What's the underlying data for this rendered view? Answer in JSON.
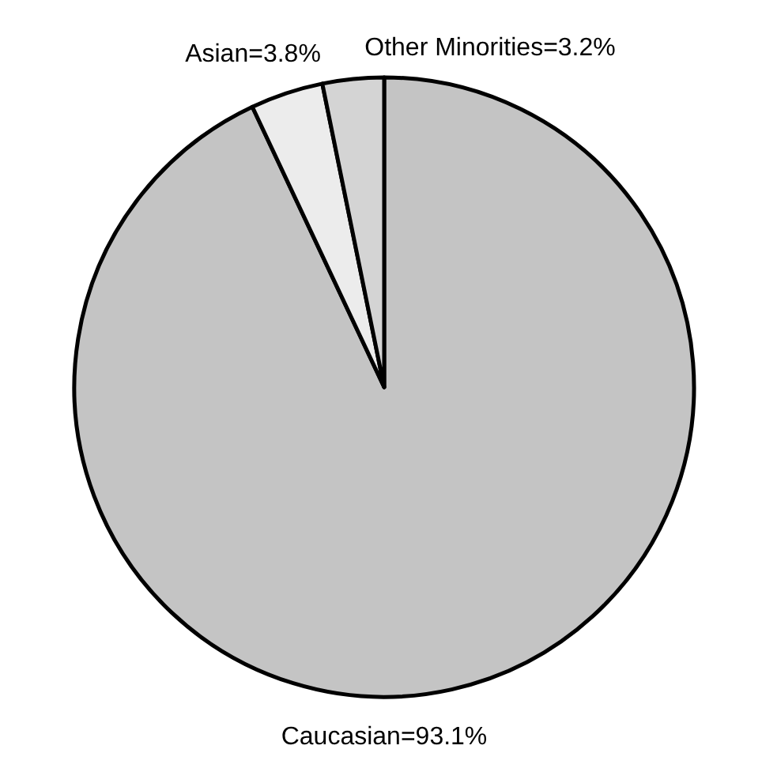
{
  "chart_data": {
    "type": "pie",
    "categories": [
      "Caucasian=93.1%",
      "Asian=3.8%",
      "Other Minorities=3.2%"
    ],
    "values": [
      93.1,
      3.8,
      3.2
    ],
    "colors": [
      "#c4c4c4",
      "#ececec",
      "#d4d4d4"
    ]
  }
}
